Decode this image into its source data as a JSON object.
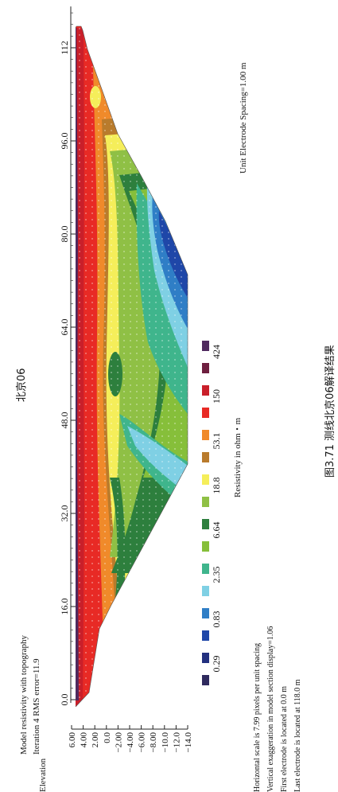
{
  "section_title": "北京06",
  "caption": "图3.71   测线北京06解译结果",
  "header": {
    "line1": "Model resistivity with topography",
    "line2": "Iteration 4 RMS error=11.9"
  },
  "elevation_label": "Elevation",
  "unit_spacing": "Unit Electrode Spacing=1.00 m",
  "footer": {
    "line1": "Horizontal scale is 7.99 pixels per unit spacing",
    "line2": "Vertical exaggeration in model section display=1.06",
    "line3": "First electrode is located at 0.0 m",
    "line4": "Last electrode is located at 118.0 m"
  },
  "colors": {
    "c1": "#2f2a5e",
    "c2": "#23307f",
    "c3": "#1f47a8",
    "c4": "#2f7ec6",
    "c5": "#7fd0e4",
    "c6": "#3fb58c",
    "c7": "#86bf3a",
    "c8": "#2d7f3d",
    "c9": "#8fc045",
    "c10": "#f5ee5a",
    "c11": "#b97b2c",
    "c12": "#f08a2a",
    "c13": "#e82a25",
    "c14": "#c91f2a",
    "c15": "#6e1f3f",
    "c16": "#4f2a5e"
  },
  "chart_data": {
    "type": "heatmap",
    "title": "Model resistivity with topography",
    "x_axis": {
      "label": "Unit Electrode Spacing=1.00 m",
      "range": [
        0,
        118
      ],
      "ticks": [
        0,
        16,
        32,
        48,
        64,
        80,
        96,
        112
      ],
      "tick_labels": [
        "0.0",
        "16.0",
        "32.0",
        "48.0",
        "64.0",
        "80.0",
        "96.0",
        "112"
      ]
    },
    "y_axis": {
      "label": "Elevation",
      "range": [
        -14,
        6
      ],
      "ticks": [
        6,
        4,
        2,
        0,
        -2,
        -4,
        -6,
        -8,
        -10,
        -12,
        -14
      ],
      "tick_labels": [
        "6.00",
        "4.00",
        "2.00",
        "0.0",
        "−2.00",
        "−4.00",
        "−6.00",
        "−8.00",
        "−10.0",
        "−12.0",
        "−14.0"
      ]
    },
    "legend": {
      "title": "Resistivity in ohm・m",
      "labels": [
        "0.29",
        "0.83",
        "2.35",
        "6.64",
        "18.8",
        "53.1",
        "150",
        "424"
      ],
      "colors": [
        "#2f2a5e",
        "#23307f",
        "#1f47a8",
        "#2f7ec6",
        "#7fd0e4",
        "#3fb58c",
        "#86bf3a",
        "#2d7f3d",
        "#8fc045",
        "#f5ee5a",
        "#b97b2c",
        "#f08a2a",
        "#e82a25",
        "#c91f2a",
        "#6e1f3f",
        "#4f2a5e"
      ]
    },
    "iteration": 4,
    "rms_error": 11.9,
    "first_electrode_m": 0.0,
    "last_electrode_m": 118.0,
    "horizontal_scale_px_per_spacing": 7.99,
    "vertical_exaggeration": 1.06
  }
}
